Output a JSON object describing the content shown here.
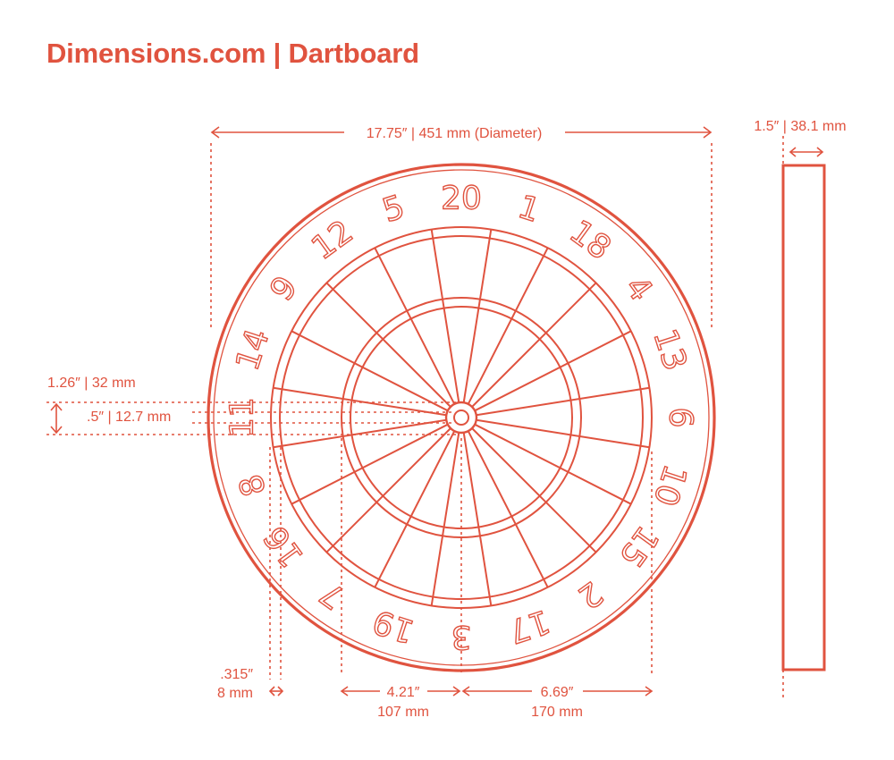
{
  "header": {
    "title": "Dimensions.com | Dartboard"
  },
  "colors": {
    "accent": "#e0533f",
    "background": "#ffffff"
  },
  "dimensions": {
    "diameter": "17.75″ | 451 mm (Diameter)",
    "depth": "1.5″ | 38.1 mm",
    "bull_outer": "1.26″ | 32 mm",
    "bull_inner": ".5″ | 12.7 mm",
    "wire_width_in": ".315″",
    "wire_width_mm": "8 mm",
    "treble_radius_in": "4.21″",
    "treble_radius_mm": "107 mm",
    "double_radius_in": "6.69″",
    "double_radius_mm": "170 mm"
  },
  "board": {
    "numbers": [
      "20",
      "1",
      "18",
      "4",
      "13",
      "6",
      "10",
      "15",
      "2",
      "17",
      "3",
      "19",
      "7",
      "16",
      "8",
      "11",
      "14",
      "9",
      "12",
      "5"
    ]
  }
}
